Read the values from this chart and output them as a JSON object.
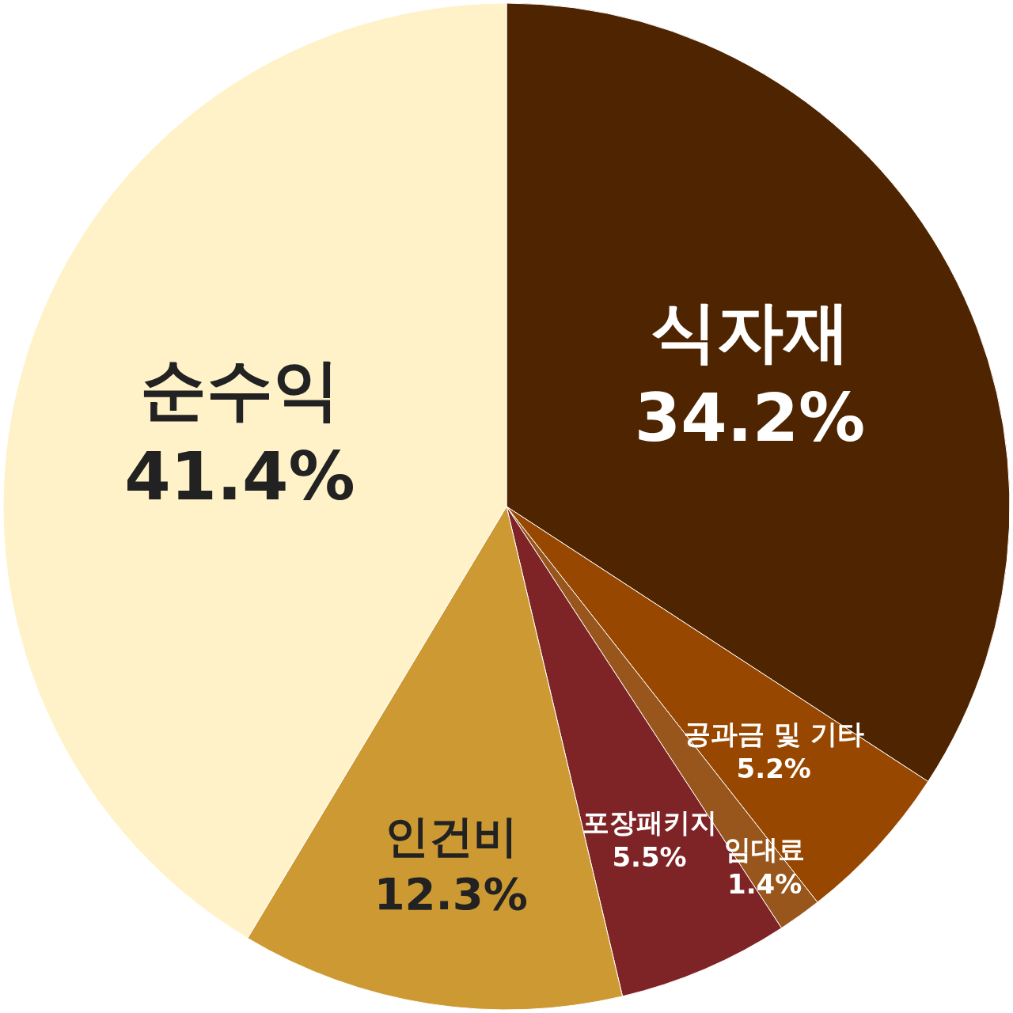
{
  "chart_data": {
    "type": "pie",
    "categories": [
      "식자재",
      "공과금 및 기타",
      "임대료",
      "포장패키지",
      "인건비",
      "순수익"
    ],
    "values": [
      34.2,
      5.2,
      1.4,
      5.5,
      12.3,
      41.4
    ],
    "value_labels": [
      "34.2%",
      "5.2%",
      "1.4%",
      "5.5%",
      "12.3%",
      "41.4%"
    ],
    "colors": [
      "#4e2500",
      "#984700",
      "#98561c",
      "#7f2426",
      "#cc9933",
      "#fff2c8"
    ],
    "legend": false
  }
}
